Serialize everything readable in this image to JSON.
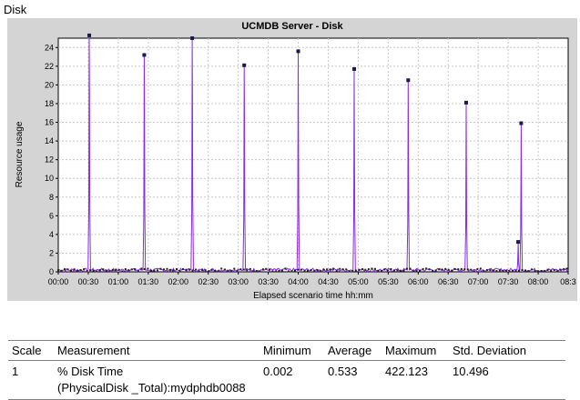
{
  "page": {
    "section_title": "Disk"
  },
  "chart_data": {
    "type": "line",
    "title": "UCMDB Server - Disk",
    "xlabel": "Elapsed scenario time hh:mm",
    "ylabel": "Resource usage",
    "ylim": [
      0,
      25
    ],
    "yticks": [
      0,
      2,
      4,
      6,
      8,
      10,
      12,
      14,
      16,
      18,
      20,
      22,
      24
    ],
    "xlim_minutes": [
      0,
      510
    ],
    "xtick_labels": [
      "00:00",
      "00:30",
      "01:00",
      "01:30",
      "02:00",
      "02:30",
      "03:00",
      "03:30",
      "04:00",
      "04:30",
      "05:00",
      "05:30",
      "06:00",
      "06:30",
      "07:00",
      "07:30",
      "08:00",
      "08:3"
    ],
    "grid": true,
    "series": [
      {
        "color": "#8a2be2",
        "peaks": [
          {
            "x_minutes": 31,
            "y": 25.3
          },
          {
            "x_minutes": 86,
            "y": 23.2
          },
          {
            "x_minutes": 134,
            "y": 25.0
          },
          {
            "x_minutes": 186,
            "y": 22.1
          },
          {
            "x_minutes": 240,
            "y": 23.6
          },
          {
            "x_minutes": 296,
            "y": 21.7
          },
          {
            "x_minutes": 350,
            "y": 20.5
          },
          {
            "x_minutes": 408,
            "y": 18.1
          },
          {
            "x_minutes": 460,
            "y": 3.2
          },
          {
            "x_minutes": 463,
            "y": 15.9
          }
        ],
        "baseline": 0.2
      }
    ]
  },
  "table": {
    "headers": [
      "Scale",
      "Measurement",
      "Minimum",
      "Average",
      "Maximum",
      "Std. Deviation"
    ],
    "rows": [
      {
        "scale": "1",
        "measurement_line1": "% Disk Time",
        "measurement_line2": "(PhysicalDisk _Total):mydphdb0088",
        "minimum": "0.002",
        "average": "0.533",
        "maximum": "422.123",
        "std_deviation": "10.496"
      }
    ]
  }
}
